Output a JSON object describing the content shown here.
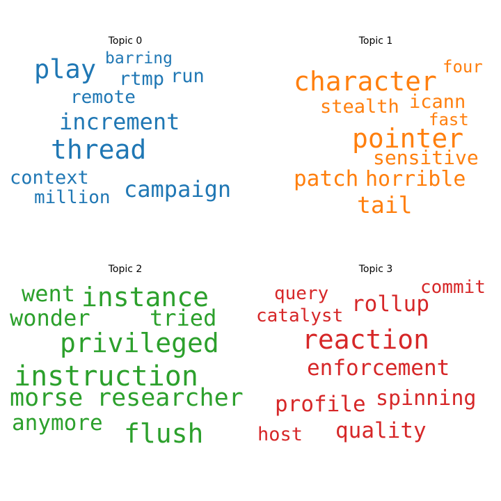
{
  "panels": [
    {
      "title": "Topic 0",
      "color": "#1f77b4",
      "words": [
        {
          "text": "barring"
        },
        {
          "text": "play"
        },
        {
          "text": "rtmp"
        },
        {
          "text": "run"
        },
        {
          "text": "remote"
        },
        {
          "text": "increment"
        },
        {
          "text": "thread"
        },
        {
          "text": "context"
        },
        {
          "text": "campaign"
        },
        {
          "text": "million"
        }
      ]
    },
    {
      "title": "Topic 1",
      "color": "#ff7f0e",
      "words": [
        {
          "text": "four"
        },
        {
          "text": "character"
        },
        {
          "text": "icann"
        },
        {
          "text": "stealth"
        },
        {
          "text": "fast"
        },
        {
          "text": "pointer"
        },
        {
          "text": "sensitive"
        },
        {
          "text": "patch"
        },
        {
          "text": "horrible"
        },
        {
          "text": "tail"
        }
      ]
    },
    {
      "title": "Topic 2",
      "color": "#2ca02c",
      "words": [
        {
          "text": "went"
        },
        {
          "text": "instance"
        },
        {
          "text": "wonder"
        },
        {
          "text": "tried"
        },
        {
          "text": "privileged"
        },
        {
          "text": "instruction"
        },
        {
          "text": "morse"
        },
        {
          "text": "researcher"
        },
        {
          "text": "anymore"
        },
        {
          "text": "flush"
        }
      ]
    },
    {
      "title": "Topic 3",
      "color": "#d62728",
      "words": [
        {
          "text": "commit"
        },
        {
          "text": "query"
        },
        {
          "text": "rollup"
        },
        {
          "text": "catalyst"
        },
        {
          "text": "reaction"
        },
        {
          "text": "enforcement"
        },
        {
          "text": "profile"
        },
        {
          "text": "spinning"
        },
        {
          "text": "host"
        },
        {
          "text": "quality"
        }
      ]
    }
  ]
}
